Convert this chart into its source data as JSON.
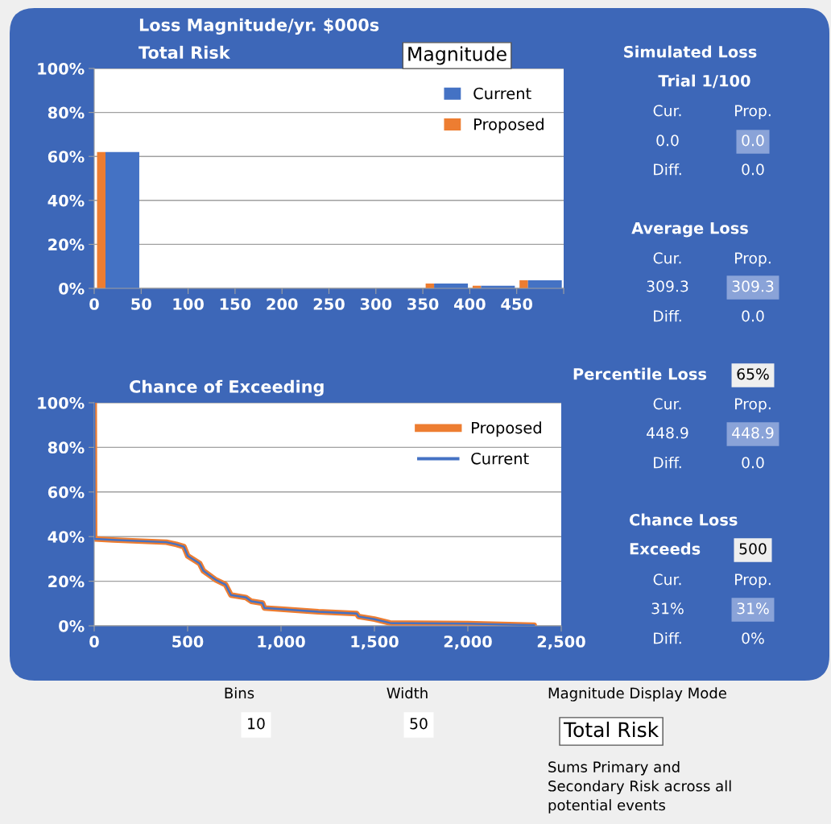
{
  "chart_data": [
    {
      "type": "histogram",
      "title": "Loss Magnitude/yr. $000s",
      "subtitle": "Total Risk",
      "bins": [
        0,
        50,
        100,
        150,
        200,
        250,
        300,
        350,
        400,
        450,
        500
      ],
      "series": [
        {
          "name": "Proposed",
          "color": "#ed7d31",
          "values": [
            62,
            0,
            0,
            0,
            0,
            0,
            0,
            2.2,
            1.2,
            3.7
          ]
        },
        {
          "name": "Current",
          "color": "#4472c4",
          "values": [
            62,
            0,
            0,
            0,
            0,
            0,
            0,
            2.2,
            1.2,
            3.7
          ]
        }
      ],
      "xlim": [
        0,
        500
      ],
      "xticks": [
        0,
        50,
        100,
        150,
        200,
        250,
        300,
        350,
        400,
        450,
        {
          "value": 500,
          "label": null
        }
      ],
      "ylim": [
        0,
        100
      ],
      "yticks": [
        {
          "value": 0,
          "label": "0%"
        },
        {
          "value": 20,
          "label": "20%"
        },
        {
          "value": 40,
          "label": "40%"
        },
        {
          "value": 60,
          "label": "60%"
        },
        {
          "value": 80,
          "label": "80%"
        },
        {
          "value": 100,
          "label": "100%"
        }
      ],
      "grid": "y",
      "legend": "top right"
    },
    {
      "type": "line",
      "title": "Chance of Exceeding",
      "series": [
        {
          "name": "Proposed",
          "color": "#ed7d31",
          "x": [
            0,
            2,
            100,
            386,
            440,
            480,
            501,
            564,
            584,
            653,
            703,
            732,
            812,
            841,
            901,
            911,
            1000,
            1200,
            1405,
            1415,
            1500,
            1583,
            1600,
            2000,
            2355
          ],
          "values": [
            100,
            39,
            38.5,
            37.5,
            36.5,
            35.5,
            31.3,
            28,
            24.7,
            20.5,
            18.5,
            13.8,
            12.7,
            11,
            10.2,
            8,
            7.5,
            6.3,
            5.5,
            4.2,
            3,
            1.3,
            1.2,
            1,
            0.3
          ]
        },
        {
          "name": "Current",
          "color": "#4472c4",
          "x": [
            0,
            2,
            100,
            386,
            440,
            480,
            501,
            564,
            584,
            653,
            703,
            732,
            812,
            841,
            901,
            911,
            1000,
            1200,
            1405,
            1415,
            1500,
            1583,
            1600,
            2000,
            2355
          ],
          "values": [
            100,
            39,
            38.5,
            37.5,
            36.5,
            35.5,
            31.3,
            28,
            24.7,
            20.5,
            18.5,
            13.8,
            12.7,
            11,
            10.2,
            8,
            7.5,
            6.3,
            5.5,
            4.2,
            3,
            1.3,
            1.2,
            1,
            0.3
          ]
        }
      ],
      "xlim": [
        0,
        2500
      ],
      "xticks": [
        0,
        500,
        {
          "value": 1000,
          "label": "1,000"
        },
        {
          "value": 1500,
          "label": "1,500"
        },
        {
          "value": 2000,
          "label": "2,000"
        },
        {
          "value": 2500,
          "label": "2,500"
        }
      ],
      "ylim": [
        0,
        100
      ],
      "yticks": [
        {
          "value": 0,
          "label": "0%"
        },
        {
          "value": 20,
          "label": "20%"
        },
        {
          "value": 40,
          "label": "40%"
        },
        {
          "value": 60,
          "label": "60%"
        },
        {
          "value": 80,
          "label": "80%"
        },
        {
          "value": 100,
          "label": "100%"
        }
      ],
      "grid": "y",
      "legend": "top right",
      "line_style": "solid"
    },
    {
      "type": "other",
      "annotations": [
        "Simulated Loss",
        "Trial 1/100",
        "Cur.",
        "Prop.",
        "0.0",
        "0.0",
        "Diff.",
        "0.0",
        "Average Loss",
        "Cur.",
        "Prop.",
        "309.3",
        "309.3",
        "Diff.",
        "0.0",
        "Percentile Loss",
        "65%",
        "Cur.",
        "Prop.",
        "448.9",
        "448.9",
        "Diff.",
        "0.0",
        "Chance Loss",
        "Exceeds",
        "500",
        "Cur.",
        "Prop.",
        "31%",
        "31%",
        "Diff.",
        "0%",
        "Bins",
        "10",
        "Width",
        "50",
        "Magnitude Display Mode",
        "Total Risk",
        "Sums Primary and\nSecondary Risk across all\npotential events",
        "Magnitude"
      ]
    }
  ]
}
